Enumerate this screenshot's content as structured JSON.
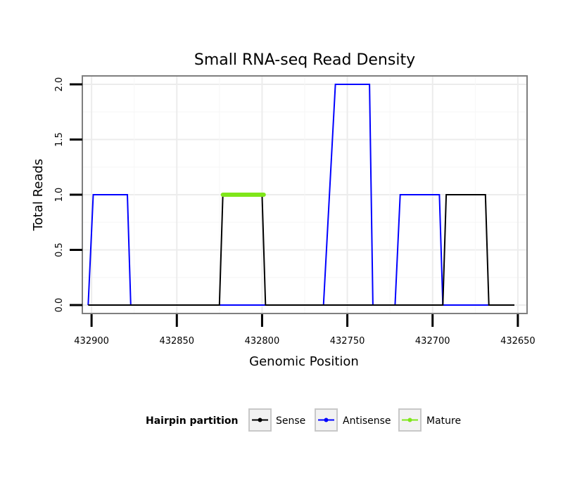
{
  "chart_data": {
    "type": "line",
    "title": "Small RNA-seq Read Density",
    "xlabel": "Genomic Position",
    "ylabel": "Total Reads",
    "x_reversed": true,
    "xlim": [
      432905,
      432645
    ],
    "ylim": [
      -0.07,
      2.07
    ],
    "xticks": [
      432900,
      432850,
      432800,
      432750,
      432700,
      432650
    ],
    "xtick_labels": [
      "432900",
      "432850",
      "432800",
      "432750",
      "432700",
      "432650"
    ],
    "yticks": [
      0.0,
      0.5,
      1.0,
      1.5,
      2.0
    ],
    "ytick_labels": [
      "0.0",
      "0.5",
      "1.0",
      "1.5",
      "2.0"
    ],
    "grid": true,
    "legend": {
      "title": "Hairpin partition",
      "placement": "bottom",
      "entries": [
        "Sense",
        "Antisense",
        "Mature"
      ]
    },
    "series": [
      {
        "name": "Antisense",
        "color": "#0000ff",
        "x": [
          432902,
          432899,
          432879,
          432877,
          432798,
          432764,
          432757,
          432737,
          432735,
          432722,
          432719,
          432696,
          432694,
          432672,
          432656
        ],
        "y": [
          0,
          1,
          1,
          0,
          0,
          0,
          2,
          2,
          0,
          0,
          1,
          1,
          0,
          0,
          0
        ]
      },
      {
        "name": "Sense",
        "color": "#000000",
        "x": [
          432902,
          432825,
          432823,
          432800,
          432798,
          432694,
          432692,
          432669,
          432667,
          432652
        ],
        "y": [
          0,
          0,
          1,
          1,
          0,
          0,
          1,
          1,
          0,
          0
        ]
      },
      {
        "name": "Mature",
        "color": "#7fe61a",
        "x": [
          432823,
          432799
        ],
        "y": [
          1,
          1
        ]
      }
    ]
  }
}
